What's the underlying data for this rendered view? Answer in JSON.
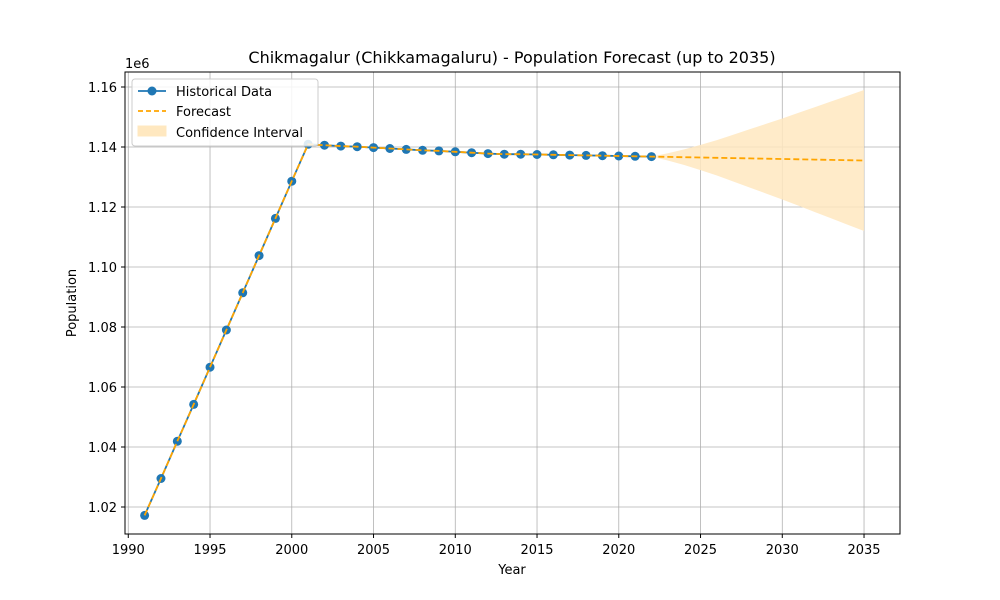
{
  "chart_data": {
    "type": "line",
    "title": "Chikmagalur (Chikkamagaluru) - Population Forecast (up to 2035)",
    "xlabel": "Year",
    "ylabel": "Population",
    "y_offset_label": "1e6",
    "xlim": [
      1989.8,
      2037.2
    ],
    "ylim": [
      1.011,
      1.165
    ],
    "x_ticks": [
      1990,
      1995,
      2000,
      2005,
      2010,
      2015,
      2020,
      2025,
      2030,
      2035
    ],
    "y_ticks": [
      1.02,
      1.04,
      1.06,
      1.08,
      1.1,
      1.12,
      1.14,
      1.16
    ],
    "y_tick_labels": [
      "1.02",
      "1.04",
      "1.06",
      "1.08",
      "1.10",
      "1.12",
      "1.14",
      "1.16"
    ],
    "grid": true,
    "legend_position": "upper-left",
    "legend": {
      "historical": "Historical Data",
      "forecast": "Forecast",
      "ci": "Confidence Interval"
    },
    "colors": {
      "historical": "#1f77b4",
      "forecast": "#ffa500",
      "ci": "#ffe8c0",
      "grid": "#b0b0b0"
    },
    "historical": {
      "x": [
        1991,
        1992,
        1993,
        1994,
        1995,
        1996,
        1997,
        1998,
        1999,
        2000,
        2001,
        2002,
        2003,
        2004,
        2005,
        2006,
        2007,
        2008,
        2009,
        2010,
        2011,
        2012,
        2013,
        2014,
        2015,
        2016,
        2017,
        2018,
        2019,
        2020,
        2021,
        2022
      ],
      "y": [
        1.0172,
        1.0295,
        1.0419,
        1.0542,
        1.0666,
        1.079,
        1.0914,
        1.1038,
        1.1162,
        1.1286,
        1.1409,
        1.1406,
        1.1403,
        1.1401,
        1.1398,
        1.1395,
        1.1392,
        1.1389,
        1.1387,
        1.1384,
        1.1381,
        1.1378,
        1.1376,
        1.1376,
        1.1375,
        1.1374,
        1.1373,
        1.1372,
        1.1371,
        1.137,
        1.1369,
        1.1368
      ]
    },
    "forecast": {
      "x": [
        1991,
        1992,
        1993,
        1994,
        1995,
        1996,
        1997,
        1998,
        1999,
        2000,
        2001,
        2002,
        2003,
        2004,
        2005,
        2006,
        2007,
        2008,
        2009,
        2010,
        2011,
        2012,
        2013,
        2014,
        2015,
        2016,
        2017,
        2018,
        2019,
        2020,
        2021,
        2022,
        2023,
        2024,
        2025,
        2026,
        2027,
        2028,
        2029,
        2030,
        2031,
        2032,
        2033,
        2034,
        2035
      ],
      "y": [
        1.0172,
        1.0295,
        1.0419,
        1.0542,
        1.0666,
        1.079,
        1.0914,
        1.1038,
        1.1162,
        1.1286,
        1.1409,
        1.1406,
        1.1403,
        1.1401,
        1.1398,
        1.1395,
        1.1392,
        1.1389,
        1.1387,
        1.1384,
        1.1381,
        1.1378,
        1.1376,
        1.1376,
        1.1375,
        1.1374,
        1.1373,
        1.1372,
        1.1371,
        1.137,
        1.1369,
        1.1368,
        1.1367,
        1.1366,
        1.1365,
        1.1364,
        1.1363,
        1.1362,
        1.1361,
        1.136,
        1.1359,
        1.1358,
        1.1357,
        1.1356,
        1.1355
      ]
    },
    "confidence_interval": {
      "x": [
        2022,
        2023,
        2024,
        2025,
        2026,
        2027,
        2028,
        2029,
        2030,
        2031,
        2032,
        2033,
        2034,
        2035
      ],
      "lower": [
        1.1368,
        1.1355,
        1.134,
        1.1323,
        1.1305,
        1.1285,
        1.1265,
        1.1245,
        1.1225,
        1.1204,
        1.1183,
        1.1162,
        1.1141,
        1.112
      ],
      "upper": [
        1.1368,
        1.1379,
        1.1392,
        1.1407,
        1.1423,
        1.1441,
        1.1459,
        1.1477,
        1.1495,
        1.1514,
        1.1533,
        1.1552,
        1.1571,
        1.159
      ]
    }
  }
}
